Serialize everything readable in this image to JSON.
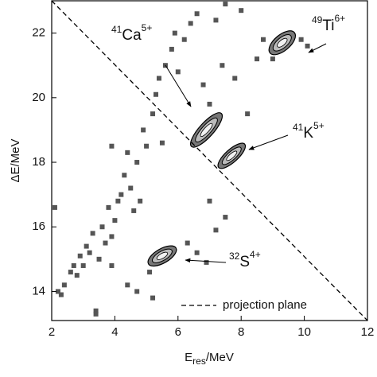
{
  "chart_data": {
    "type": "scatter",
    "x_label": {
      "main": "E",
      "sub": "res",
      "unit": "/MeV"
    },
    "y_label": "ΔE/MeV",
    "xlim": [
      2,
      12
    ],
    "ylim": [
      13.1,
      23
    ],
    "xticks": [
      2,
      4,
      6,
      8,
      10,
      12
    ],
    "yticks": [
      14,
      16,
      18,
      20,
      22
    ],
    "color": "#555555",
    "x": [
      2.1,
      2.2,
      2.3,
      2.4,
      2.6,
      2.7,
      2.8,
      2.9,
      3.0,
      3.1,
      3.2,
      3.3,
      3.4,
      3.5,
      3.6,
      3.7,
      3.8,
      3.9,
      4.0,
      4.1,
      4.2,
      4.3,
      4.4,
      4.5,
      4.6,
      4.7,
      4.8,
      4.9,
      5.0,
      5.1,
      5.2,
      5.3,
      5.4,
      5.5,
      5.6,
      5.8,
      5.9,
      6.0,
      6.2,
      6.4,
      6.6,
      6.8,
      7.0,
      7.2,
      7.4,
      7.5,
      7.8,
      8.0,
      8.2,
      8.5,
      6.3,
      6.6,
      6.9,
      7.2,
      7.5,
      7.0,
      4.4,
      3.9,
      9.0,
      8.7,
      9.9,
      10.1,
      5.2,
      4.7,
      3.9,
      3.4
    ],
    "y": [
      16.6,
      14.0,
      13.9,
      14.2,
      14.6,
      14.8,
      14.5,
      15.1,
      14.8,
      15.4,
      15.2,
      15.8,
      13.4,
      15.0,
      16.0,
      15.5,
      16.6,
      15.7,
      16.2,
      16.8,
      17.0,
      17.6,
      18.3,
      17.2,
      16.5,
      18.0,
      16.8,
      19.0,
      18.5,
      14.6,
      19.5,
      20.1,
      20.6,
      18.6,
      21.0,
      21.5,
      22.0,
      20.8,
      21.8,
      22.3,
      22.6,
      20.4,
      19.8,
      22.4,
      21.0,
      22.9,
      20.6,
      22.7,
      19.5,
      21.2,
      15.5,
      15.2,
      14.9,
      15.9,
      16.3,
      16.8,
      14.2,
      14.8,
      21.2,
      21.8,
      21.8,
      21.6,
      13.8,
      14.0,
      18.5,
      13.3
    ],
    "clusters": {
      "x": [
        6.9,
        7.7,
        9.3,
        5.5
      ],
      "y": [
        19.0,
        18.2,
        21.7,
        15.1
      ]
    },
    "projection_line": {
      "name": "projection plane",
      "x": [
        2,
        12
      ],
      "y": [
        23,
        13.1
      ]
    },
    "annotations": [
      {
        "mass": "41",
        "element": "Ca",
        "charge": "5+"
      },
      {
        "mass": "49",
        "element": "Ti",
        "charge": "6+"
      },
      {
        "mass": "41",
        "element": "K",
        "charge": "5+"
      },
      {
        "mass": "32",
        "element": "S",
        "charge": "4+"
      }
    ]
  }
}
